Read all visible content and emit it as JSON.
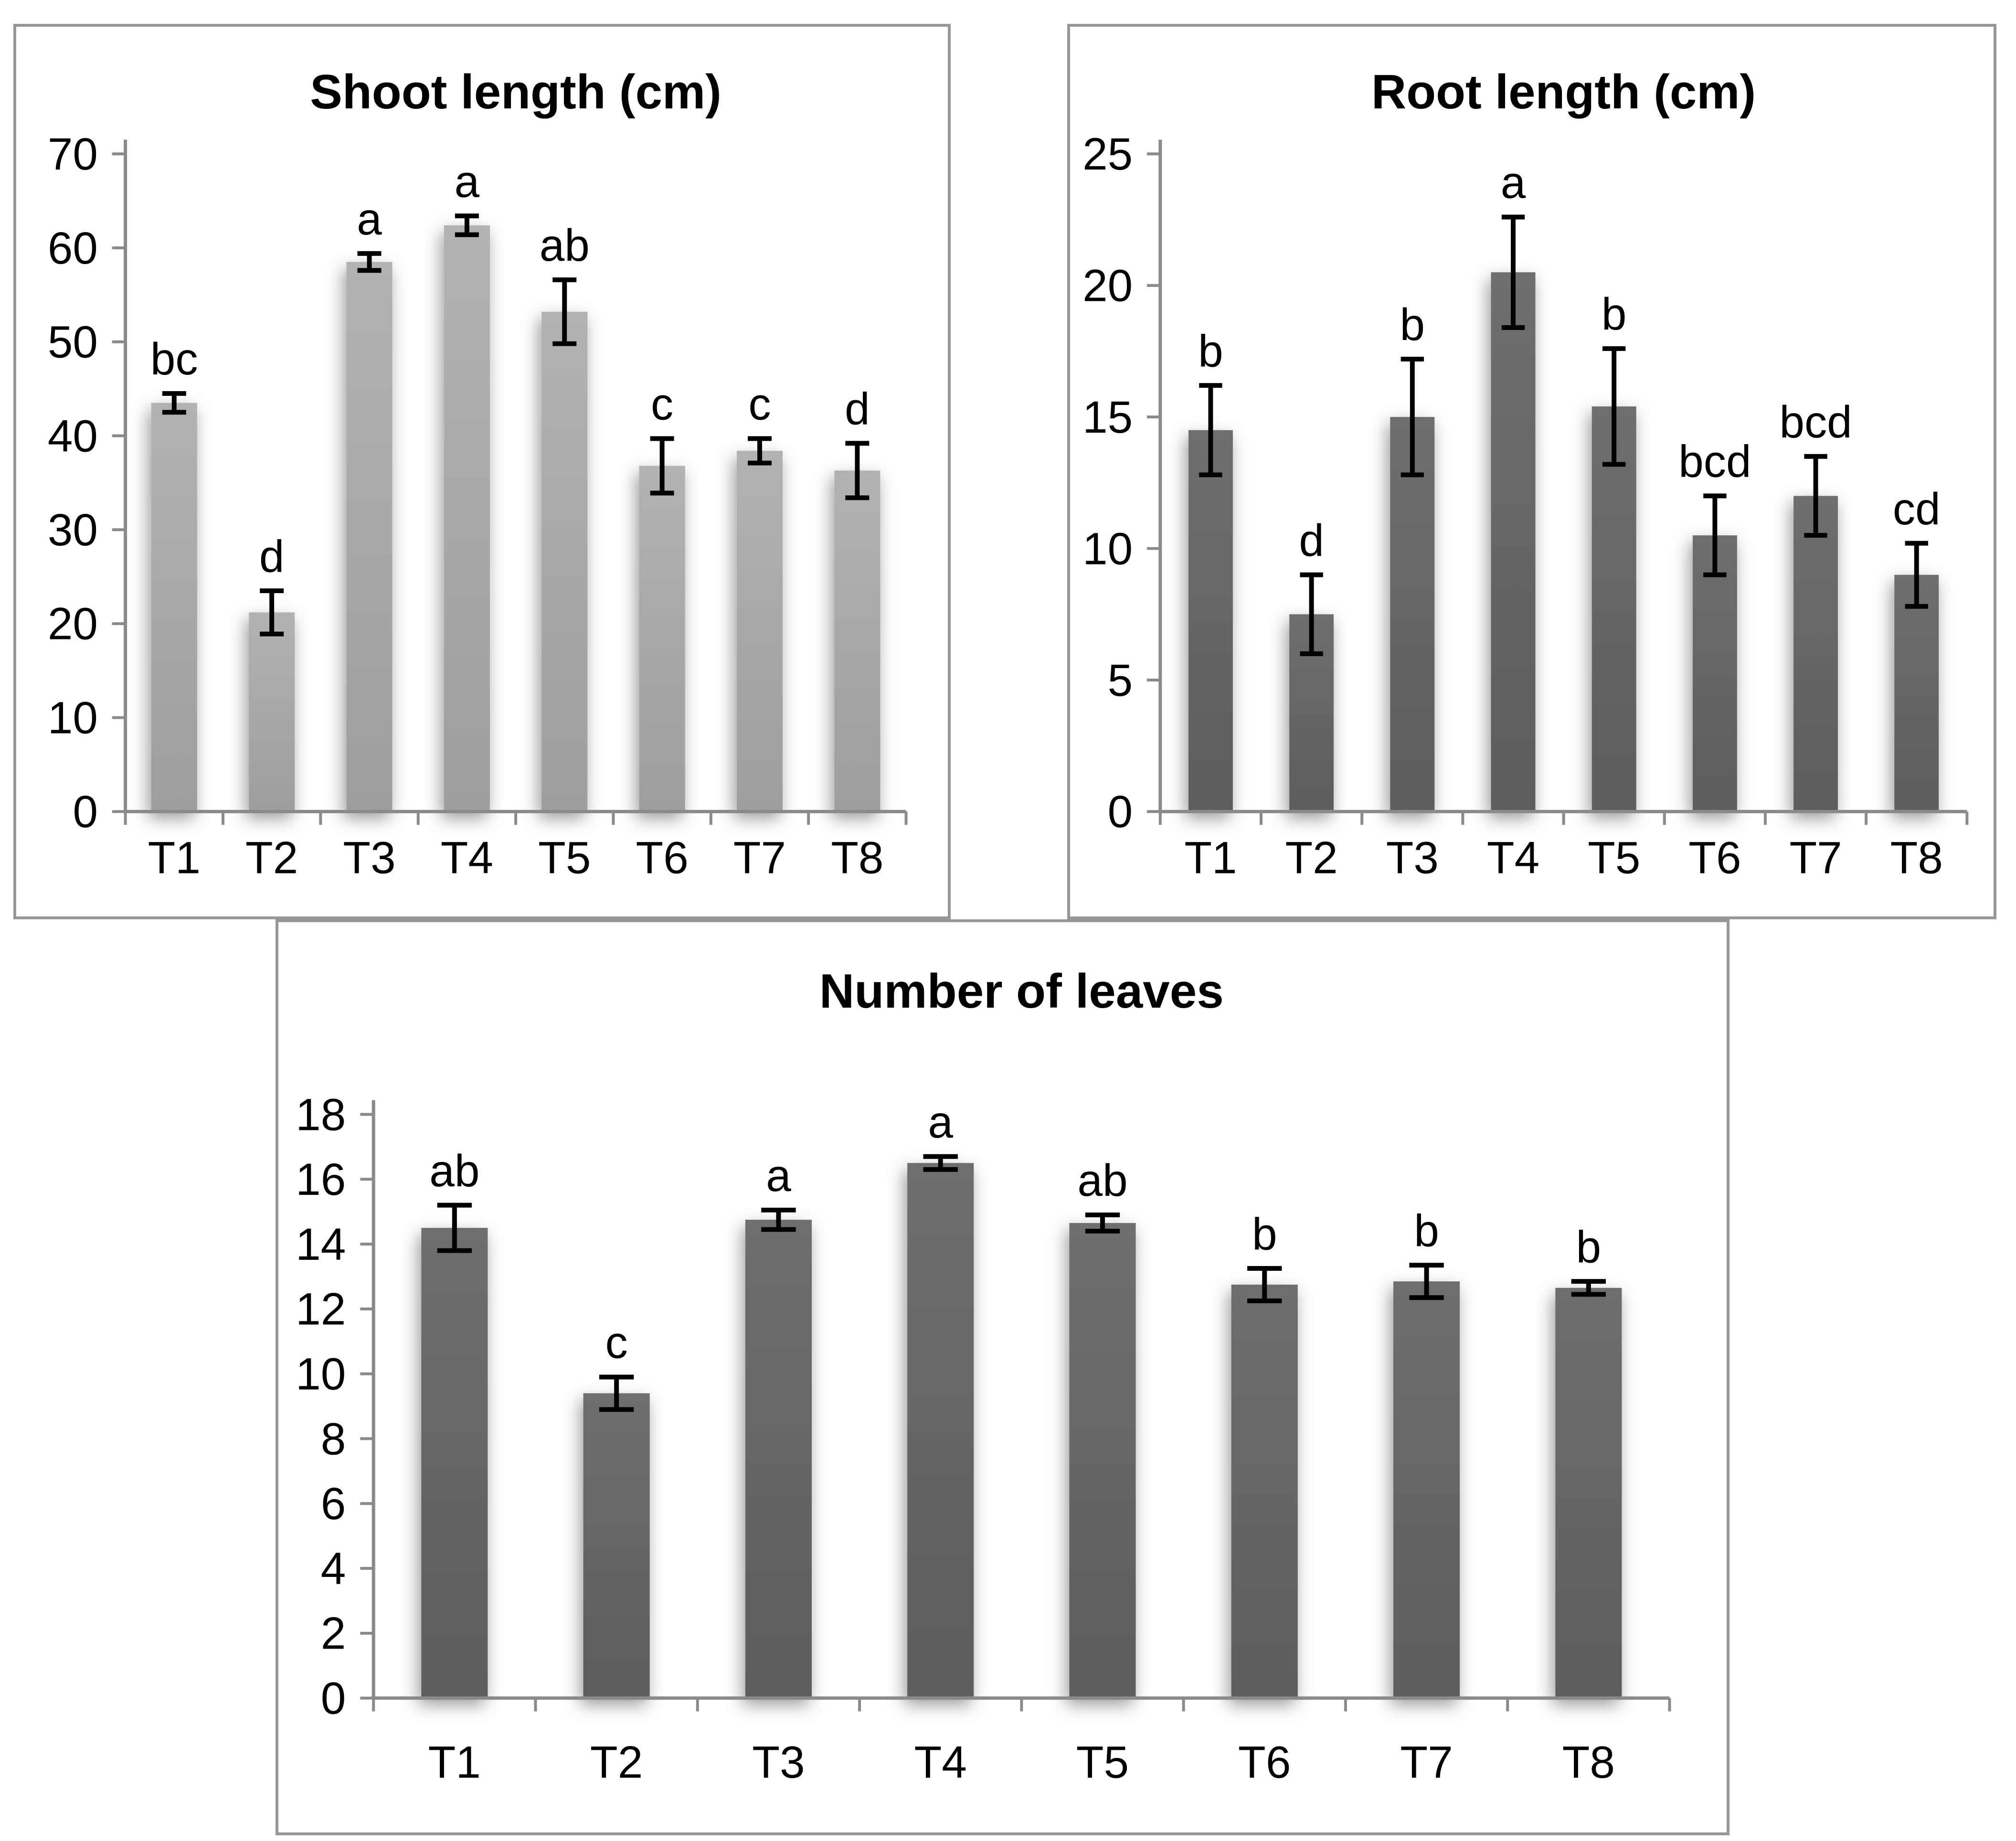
{
  "figure": {
    "background": "#ffffff",
    "panel_border_color": "#979797",
    "axis_color": "#8a8a8a",
    "error_bar_color": "#000000",
    "text_color": "#000000"
  },
  "chart_data": [
    {
      "type": "bar",
      "title": "Shoot length (cm)",
      "categories": [
        "T1",
        "T2",
        "T3",
        "T4",
        "T5",
        "T6",
        "T7",
        "T8"
      ],
      "values": [
        43.5,
        21.2,
        58.5,
        62.4,
        53.2,
        36.8,
        38.4,
        36.3
      ],
      "errors": [
        1.0,
        2.3,
        0.9,
        1.0,
        3.4,
        2.9,
        1.3,
        2.9
      ],
      "letters": [
        "bc",
        "d",
        "a",
        "a",
        "ab",
        "c",
        "c",
        "d"
      ],
      "ylim": [
        0,
        70
      ],
      "yticks": [
        0,
        10,
        20,
        30,
        40,
        50,
        60,
        70
      ],
      "grid": false,
      "legend": "none",
      "bar_color_top": "#b2b2b2",
      "bar_color_bottom": "#9e9e9e"
    },
    {
      "type": "bar",
      "title": "Root length (cm)",
      "categories": [
        "T1",
        "T2",
        "T3",
        "T4",
        "T5",
        "T6",
        "T7",
        "T8"
      ],
      "values": [
        14.5,
        7.5,
        15.0,
        20.5,
        15.4,
        10.5,
        12.0,
        9.0
      ],
      "errors": [
        1.7,
        1.5,
        2.2,
        2.1,
        2.2,
        1.5,
        1.5,
        1.2
      ],
      "letters": [
        "b",
        "d",
        "b",
        "a",
        "b",
        "bcd",
        "bcd",
        "cd"
      ],
      "ylim": [
        0,
        25
      ],
      "yticks": [
        0,
        5,
        10,
        15,
        20,
        25
      ],
      "grid": false,
      "legend": "none",
      "bar_color_top": "#6e6e6e",
      "bar_color_bottom": "#5d5d5d"
    },
    {
      "type": "bar",
      "title": "Number of leaves",
      "categories": [
        "T1",
        "T2",
        "T3",
        "T4",
        "T5",
        "T6",
        "T7",
        "T8"
      ],
      "values": [
        14.5,
        9.4,
        14.75,
        16.5,
        14.65,
        12.75,
        12.85,
        12.65
      ],
      "errors": [
        0.7,
        0.5,
        0.3,
        0.2,
        0.25,
        0.5,
        0.5,
        0.2
      ],
      "letters": [
        "ab",
        "c",
        "a",
        "a",
        "ab",
        "b",
        "b",
        "b"
      ],
      "ylim": [
        0,
        18
      ],
      "yticks": [
        0,
        2,
        4,
        6,
        8,
        10,
        12,
        14,
        16,
        18
      ],
      "grid": false,
      "legend": "none",
      "bar_color_top": "#6e6e6e",
      "bar_color_bottom": "#5d5d5d"
    }
  ]
}
